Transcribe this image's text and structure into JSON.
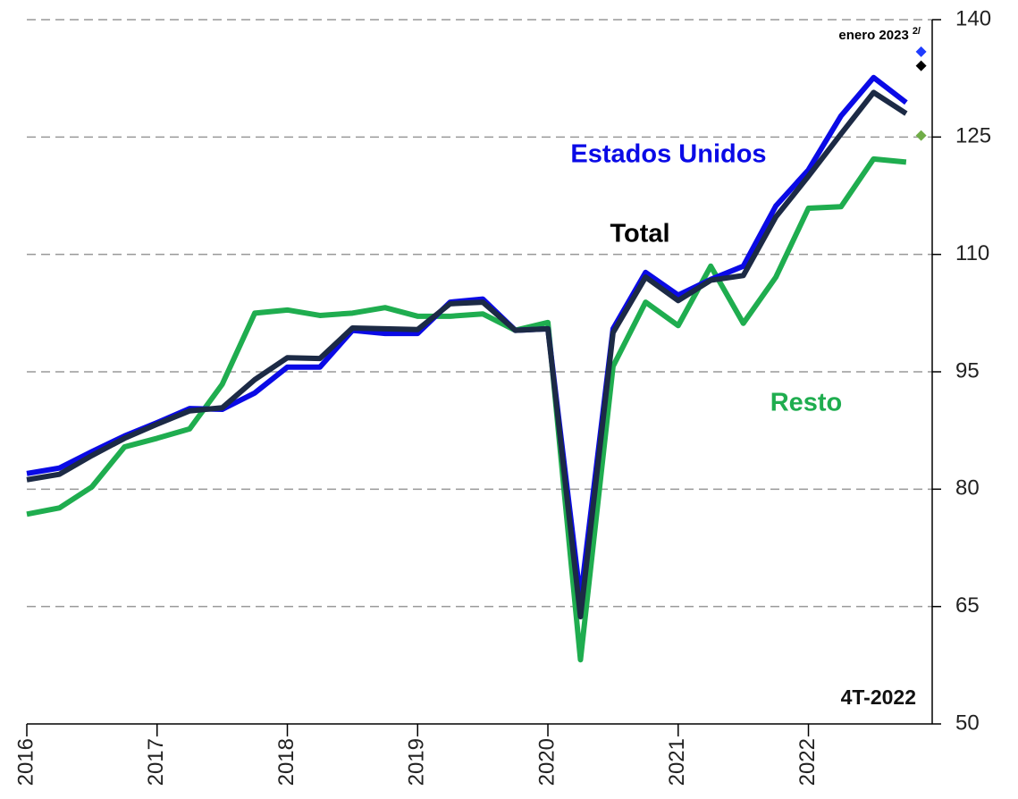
{
  "chart_data": {
    "type": "line",
    "x": [
      2016,
      2016.25,
      2016.5,
      2016.75,
      2017,
      2017.25,
      2017.5,
      2017.75,
      2018,
      2018.25,
      2018.5,
      2018.75,
      2019,
      2019.25,
      2019.5,
      2019.75,
      2020,
      2020.25,
      2020.5,
      2020.75,
      2021,
      2021.25,
      2021.5,
      2021.75,
      2022,
      2022.25,
      2022.5,
      2022.75
    ],
    "series": [
      {
        "name": "Resto",
        "color": "#1fad4f",
        "jan_2023": 125.2,
        "jan_2023_color": "#70ad47",
        "values": [
          76.8,
          77.6,
          80.3,
          85.4,
          86.5,
          87.7,
          93.4,
          102.5,
          102.9,
          102.2,
          102.5,
          103.2,
          102.1,
          102.1,
          102.4,
          100.3,
          101.3,
          58.2,
          95.7,
          103.9,
          100.9,
          108.5,
          101.2,
          107.1,
          115.9,
          116.1,
          122.2,
          121.8
        ]
      },
      {
        "name": "Estados Unidos",
        "color": "#0a0ae6",
        "jan_2023": 135.9,
        "jan_2023_color": "#1f3cff",
        "values": [
          82.0,
          82.7,
          84.8,
          86.8,
          88.5,
          90.3,
          90.2,
          92.3,
          95.6,
          95.6,
          100.3,
          99.9,
          99.9,
          103.9,
          104.3,
          100.3,
          100.5,
          66.0,
          100.5,
          107.7,
          104.8,
          106.8,
          108.5,
          116.2,
          120.8,
          127.7,
          132.6,
          129.4
        ]
      },
      {
        "name": "Total",
        "color": "#1c2a45",
        "jan_2023": 134.1,
        "jan_2023_color": "#000000",
        "values": [
          81.2,
          81.9,
          84.3,
          86.5,
          88.3,
          90.0,
          90.4,
          94.0,
          96.8,
          96.7,
          100.6,
          100.5,
          100.4,
          103.7,
          103.9,
          100.3,
          100.5,
          63.7,
          100.0,
          107.1,
          104.1,
          106.7,
          107.3,
          114.8,
          120.0,
          125.4,
          130.7,
          128.0
        ]
      }
    ],
    "jan_2023_x": 2022.865,
    "jan_2023_label": "enero 2023",
    "jan_2023_footnote": "2/",
    "period_label": "4T-2022",
    "xlim": [
      2016,
      2022.95
    ],
    "xticks": [
      2016,
      2017,
      2018,
      2019,
      2020,
      2021,
      2022
    ],
    "ylim": [
      50,
      140
    ],
    "yticks": [
      50,
      65,
      80,
      95,
      110,
      125,
      140
    ],
    "grid": true
  }
}
